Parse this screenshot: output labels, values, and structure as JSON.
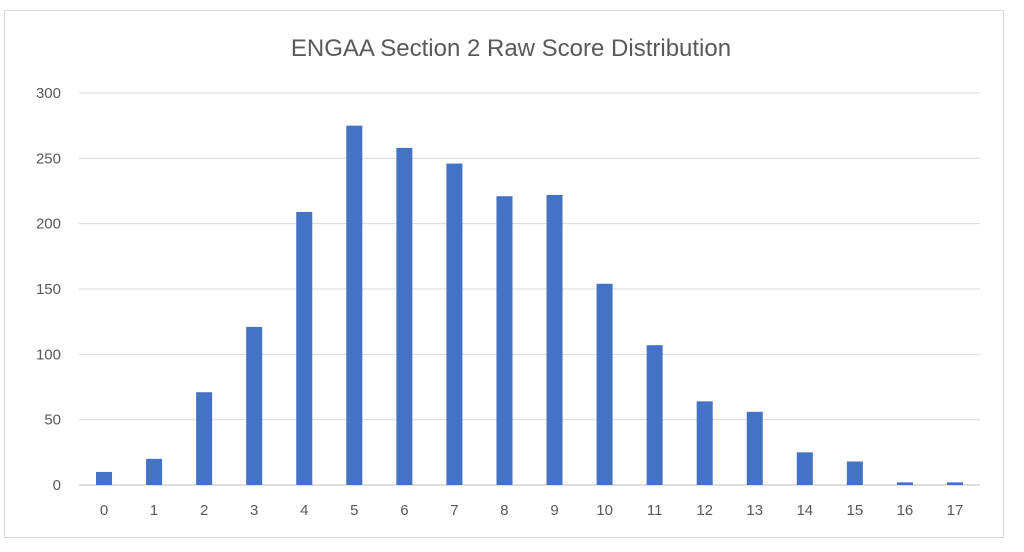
{
  "chart_data": {
    "type": "bar",
    "title": "ENGAA Section 2 Raw Score Distribution",
    "xlabel": "",
    "ylabel": "",
    "categories": [
      "0",
      "1",
      "2",
      "3",
      "4",
      "5",
      "6",
      "7",
      "8",
      "9",
      "10",
      "11",
      "12",
      "13",
      "14",
      "15",
      "16",
      "17"
    ],
    "values": [
      10,
      20,
      71,
      121,
      209,
      275,
      258,
      246,
      221,
      222,
      154,
      107,
      64,
      56,
      25,
      18,
      2,
      2
    ],
    "ylim": [
      0,
      300
    ],
    "yticks": [
      0,
      50,
      100,
      150,
      200,
      250,
      300
    ],
    "grid": true,
    "legend": "none",
    "bar_color": "#4472c4",
    "grid_color": "#d9d9d9"
  }
}
